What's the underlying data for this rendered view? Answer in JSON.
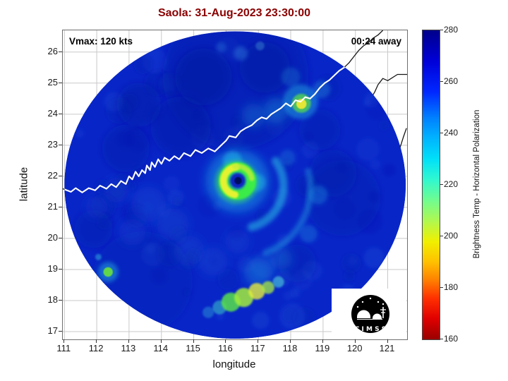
{
  "chart_data": {
    "type": "heatmap",
    "title": "Saola: 31-Aug-2023 23:30:00",
    "title_color": "#8b0000",
    "xlabel": "longitude",
    "ylabel": "latitude",
    "xlim": [
      110.95,
      121.6
    ],
    "ylim": [
      16.75,
      26.7
    ],
    "xticks": [
      111,
      112,
      113,
      114,
      115,
      116,
      117,
      118,
      119,
      120,
      121
    ],
    "yticks": [
      17,
      18,
      19,
      20,
      21,
      22,
      23,
      24,
      25,
      26
    ],
    "grid": true,
    "annotations": {
      "vmax": "Vmax: 120 kts",
      "time_away": "00:24 away"
    },
    "logo_text": "C I M S S",
    "colorbar": {
      "label": "Brightness Temp - Horizontal Polarization",
      "ticks": [
        160,
        180,
        200,
        220,
        240,
        260,
        280
      ],
      "range": [
        160,
        280
      ],
      "stops": [
        {
          "v": 280,
          "c": "#00008b"
        },
        {
          "v": 268,
          "c": "#0000d8"
        },
        {
          "v": 256,
          "c": "#0028ff"
        },
        {
          "v": 246,
          "c": "#0080ff"
        },
        {
          "v": 238,
          "c": "#00b4ff"
        },
        {
          "v": 230,
          "c": "#00e0f8"
        },
        {
          "v": 222,
          "c": "#30f8d0"
        },
        {
          "v": 214,
          "c": "#70fc90"
        },
        {
          "v": 206,
          "c": "#b0f850"
        },
        {
          "v": 198,
          "c": "#f0f000"
        },
        {
          "v": 190,
          "c": "#ffc000"
        },
        {
          "v": 183,
          "c": "#ff8000"
        },
        {
          "v": 176,
          "c": "#ff3000"
        },
        {
          "v": 168,
          "c": "#e00000"
        },
        {
          "v": 160,
          "c": "#990000"
        }
      ]
    },
    "swath": {
      "center_lon": 116.28,
      "center_lat": 21.72,
      "radius_lon": 5.28,
      "radius_lat": 4.95,
      "base_color": "#0826c8"
    },
    "storm": {
      "name": "Saola",
      "eye_lon": 116.35,
      "eye_lat": 21.85,
      "vmax_kts": 120
    },
    "features": [
      {
        "s": "b",
        "x": 116.3,
        "y": 25.2,
        "r": 2.3,
        "c": "#0713a2",
        "o": 0.4,
        "f": 3
      },
      {
        "s": "b",
        "x": 113.4,
        "y": 18.6,
        "r": 1.6,
        "c": "#0815a8",
        "o": 0.3,
        "f": 3
      },
      {
        "s": "b",
        "x": 119.6,
        "y": 21.3,
        "r": 1.2,
        "c": "#0713a2",
        "o": 0.3,
        "f": 3
      },
      {
        "s": "b",
        "x": 114.6,
        "y": 23.6,
        "r": 0.95,
        "c": "#0713a2",
        "o": 0.45,
        "f": 3
      },
      {
        "s": "b",
        "x": 112.9,
        "y": 22.9,
        "r": 0.75,
        "c": "#0713a2",
        "o": 0.4,
        "f": 3
      },
      {
        "s": "b",
        "x": 115.3,
        "y": 25.2,
        "r": 0.9,
        "c": "#06119a",
        "o": 0.45,
        "f": 3
      },
      {
        "s": "b",
        "x": 117.2,
        "y": 25.5,
        "r": 0.8,
        "c": "#06119a",
        "o": 0.4,
        "f": 3
      },
      {
        "s": "b",
        "x": 113.3,
        "y": 24.3,
        "r": 0.7,
        "c": "#06119a",
        "o": 0.4,
        "f": 3
      },
      {
        "s": "b",
        "x": 119.3,
        "y": 22.1,
        "r": 0.75,
        "c": "#0713a2",
        "o": 0.35,
        "f": 3
      },
      {
        "s": "b",
        "x": 118.9,
        "y": 23.5,
        "r": 0.65,
        "c": "#0713a2",
        "o": 0.35,
        "f": 3
      },
      {
        "s": "b",
        "x": 111.9,
        "y": 20.3,
        "r": 0.6,
        "c": "#0713a2",
        "o": 0.35,
        "f": 3
      },
      {
        "s": "b",
        "x": 118.2,
        "y": 19.2,
        "r": 0.6,
        "c": "#0713a2",
        "o": 0.3,
        "f": 3
      },
      {
        "s": "b",
        "x": 113.6,
        "y": 21.1,
        "r": 0.55,
        "c": "#1c4cd4",
        "o": 0.4,
        "f": 3
      },
      {
        "s": "b",
        "x": 114.35,
        "y": 20.45,
        "r": 0.5,
        "c": "#1c49d0",
        "o": 0.38,
        "f": 3
      },
      {
        "s": "b",
        "x": 113.1,
        "y": 20.2,
        "r": 0.42,
        "c": "#1c49d0",
        "o": 0.32,
        "f": 3
      },
      {
        "s": "b",
        "x": 114.85,
        "y": 19.6,
        "r": 0.48,
        "c": "#1e50d4",
        "o": 0.32,
        "f": 3
      },
      {
        "s": "b",
        "x": 112.6,
        "y": 21.55,
        "r": 0.4,
        "c": "#1c49d0",
        "o": 0.3,
        "f": 3
      },
      {
        "s": "b",
        "x": 115.6,
        "y": 19.25,
        "r": 0.45,
        "c": "#1e55d8",
        "o": 0.32,
        "f": 3
      },
      {
        "s": "b",
        "x": 116.35,
        "y": 19.9,
        "r": 0.38,
        "c": "#1e50d4",
        "o": 0.3,
        "f": 3
      },
      {
        "s": "b",
        "x": 112.0,
        "y": 21.0,
        "r": 0.35,
        "c": "#1c49d0",
        "o": 0.28,
        "f": 3
      },
      {
        "s": "b",
        "x": 116.45,
        "y": 25.95,
        "r": 0.22,
        "c": "#2f7fdc",
        "o": 0.4,
        "f": 2
      },
      {
        "s": "b",
        "x": 115.85,
        "y": 26.15,
        "r": 0.16,
        "c": "#2f7fdc",
        "o": 0.35,
        "f": 2
      },
      {
        "s": "b",
        "x": 117.05,
        "y": 26.2,
        "r": 0.14,
        "c": "#4fa8dc",
        "o": 0.35,
        "f": 1
      },
      {
        "s": "b",
        "x": 117.55,
        "y": 24.12,
        "r": 0.4,
        "c": "#1f96dc",
        "o": 0.4,
        "f": 3
      },
      {
        "s": "b",
        "x": 116.85,
        "y": 23.95,
        "r": 0.38,
        "c": "#1f8cd8",
        "o": 0.35,
        "f": 3
      },
      {
        "s": "b",
        "x": 118.95,
        "y": 24.8,
        "r": 0.28,
        "c": "#289ddd",
        "o": 0.35,
        "f": 2
      },
      {
        "s": "b",
        "x": 118.0,
        "y": 25.2,
        "r": 0.3,
        "c": "#1f8cd4",
        "o": 0.3,
        "f": 2
      },
      {
        "s": "b",
        "x": 118.3,
        "y": 24.4,
        "r": 0.55,
        "c": "#22b4e4",
        "o": 0.45,
        "f": 2
      },
      {
        "s": "b",
        "x": 118.33,
        "y": 24.35,
        "r": 0.3,
        "c": "#55dc48",
        "o": 0.75,
        "f": 1
      },
      {
        "s": "b",
        "x": 118.33,
        "y": 24.33,
        "r": 0.16,
        "c": "#eee832",
        "o": 0.95,
        "f": 0
      },
      {
        "s": "b",
        "x": 112.35,
        "y": 18.92,
        "r": 0.32,
        "c": "#22aadd",
        "o": 0.5,
        "f": 2
      },
      {
        "s": "b",
        "x": 112.35,
        "y": 18.92,
        "r": 0.15,
        "c": "#66dc42",
        "o": 0.95,
        "f": 0
      },
      {
        "s": "b",
        "x": 112.05,
        "y": 19.4,
        "r": 0.1,
        "c": "#2fb8e0",
        "o": 0.5,
        "f": 1
      },
      {
        "s": "b",
        "x": 111.85,
        "y": 18.55,
        "r": 0.12,
        "c": "#2292cc",
        "o": 0.4,
        "f": 1
      },
      {
        "s": "a",
        "x": 116.45,
        "y": 21.7,
        "r": 1.35,
        "w": 0.26,
        "a0": -35,
        "a1": 75,
        "c": "#2ad0ea",
        "o": 0.5,
        "f": 2
      },
      {
        "s": "a",
        "x": 116.5,
        "y": 21.6,
        "r": 2.15,
        "w": 0.2,
        "a0": -15,
        "a1": 70,
        "c": "#28b8e8",
        "o": 0.38,
        "f": 2
      },
      {
        "s": "b",
        "x": 118.85,
        "y": 21.4,
        "r": 0.3,
        "c": "#1f86dc",
        "o": 0.42,
        "f": 2
      },
      {
        "s": "b",
        "x": 118.55,
        "y": 20.15,
        "r": 0.28,
        "c": "#1f86dc",
        "o": 0.38,
        "f": 2
      },
      {
        "s": "b",
        "x": 117.9,
        "y": 22.6,
        "r": 0.25,
        "c": "#1f86dc",
        "o": 0.33,
        "f": 2
      },
      {
        "s": "b",
        "x": 117.0,
        "y": 18.9,
        "r": 0.45,
        "c": "#1f96dc",
        "o": 0.4,
        "f": 3
      },
      {
        "s": "b",
        "x": 117.7,
        "y": 19.35,
        "r": 0.35,
        "c": "#1f8cd8",
        "o": 0.33,
        "f": 3
      },
      {
        "s": "b",
        "x": 115.45,
        "y": 17.62,
        "r": 0.18,
        "c": "#2a9fd8",
        "o": 0.45,
        "f": 1
      },
      {
        "s": "b",
        "x": 115.8,
        "y": 17.78,
        "r": 0.22,
        "c": "#3cc8c8",
        "o": 0.55,
        "f": 1
      },
      {
        "s": "b",
        "x": 116.15,
        "y": 17.95,
        "r": 0.3,
        "c": "#57e04b",
        "o": 0.85,
        "f": 1
      },
      {
        "s": "b",
        "x": 116.55,
        "y": 18.1,
        "r": 0.3,
        "c": "#a2ec3c",
        "o": 0.85,
        "f": 1
      },
      {
        "s": "b",
        "x": 116.95,
        "y": 18.3,
        "r": 0.26,
        "c": "#e6ee3c",
        "o": 0.8,
        "f": 1
      },
      {
        "s": "b",
        "x": 117.3,
        "y": 18.42,
        "r": 0.2,
        "c": "#a8ea40",
        "o": 0.75,
        "f": 1
      },
      {
        "s": "b",
        "x": 117.62,
        "y": 18.6,
        "r": 0.18,
        "c": "#50d0d8",
        "o": 0.6,
        "f": 1
      },
      {
        "s": "b",
        "x": 116.35,
        "y": 21.85,
        "r": 1.0,
        "c": "#18c0ee",
        "o": 0.4,
        "f": 3
      },
      {
        "s": "b",
        "x": 116.2,
        "y": 22.5,
        "r": 0.3,
        "c": "#25c8e8",
        "o": 0.45,
        "f": 2
      },
      {
        "s": "b",
        "x": 116.95,
        "y": 21.8,
        "r": 0.28,
        "c": "#25c8e8",
        "o": 0.45,
        "f": 2
      },
      {
        "s": "b",
        "x": 116.33,
        "y": 21.82,
        "r": 0.68,
        "c": "#35e06a",
        "o": 0.55,
        "f": 2
      },
      {
        "s": "a",
        "x": 116.35,
        "y": 21.85,
        "r": 0.44,
        "w": 0.3,
        "a0": 0,
        "a1": 359.9,
        "c": "#3df23d",
        "o": 0.9,
        "f": 1
      },
      {
        "s": "a",
        "x": 116.35,
        "y": 21.85,
        "r": 0.44,
        "w": 0.22,
        "a0": 100,
        "a1": 265,
        "c": "#eef230",
        "o": 0.95,
        "f": 1
      },
      {
        "s": "a",
        "x": 116.35,
        "y": 21.85,
        "r": 0.46,
        "w": 0.16,
        "a0": -100,
        "a1": -10,
        "c": "#c0ee3a",
        "o": 0.8,
        "f": 1
      },
      {
        "s": "b",
        "x": 116.36,
        "y": 21.86,
        "r": 0.235,
        "c": "#0a28c0",
        "o": 1,
        "f": 1
      },
      {
        "s": "b",
        "x": 116.37,
        "y": 21.86,
        "r": 0.115,
        "c": "#02105e",
        "o": 1,
        "f": 0
      }
    ],
    "coastlines": {
      "china": [
        [
          110.95,
          21.6
        ],
        [
          111.2,
          21.5
        ],
        [
          111.35,
          21.62
        ],
        [
          111.55,
          21.48
        ],
        [
          111.75,
          21.62
        ],
        [
          111.95,
          21.55
        ],
        [
          112.1,
          21.7
        ],
        [
          112.3,
          21.6
        ],
        [
          112.45,
          21.75
        ],
        [
          112.6,
          21.65
        ],
        [
          112.75,
          21.85
        ],
        [
          112.9,
          21.75
        ],
        [
          113.0,
          22.0
        ],
        [
          113.1,
          21.9
        ],
        [
          113.2,
          22.15
        ],
        [
          113.3,
          22.0
        ],
        [
          113.4,
          22.2
        ],
        [
          113.5,
          22.1
        ],
        [
          113.55,
          22.35
        ],
        [
          113.65,
          22.2
        ],
        [
          113.7,
          22.45
        ],
        [
          113.8,
          22.3
        ],
        [
          113.9,
          22.55
        ],
        [
          114.0,
          22.4
        ],
        [
          114.1,
          22.6
        ],
        [
          114.25,
          22.5
        ],
        [
          114.4,
          22.65
        ],
        [
          114.55,
          22.55
        ],
        [
          114.7,
          22.75
        ],
        [
          114.9,
          22.65
        ],
        [
          115.05,
          22.85
        ],
        [
          115.25,
          22.75
        ],
        [
          115.45,
          22.9
        ],
        [
          115.65,
          22.8
        ],
        [
          115.85,
          23.0
        ],
        [
          116.0,
          23.15
        ],
        [
          116.1,
          23.3
        ],
        [
          116.3,
          23.25
        ],
        [
          116.45,
          23.45
        ],
        [
          116.6,
          23.55
        ],
        [
          116.8,
          23.65
        ],
        [
          116.95,
          23.8
        ],
        [
          117.1,
          23.9
        ],
        [
          117.25,
          23.85
        ],
        [
          117.4,
          24.0
        ],
        [
          117.55,
          24.1
        ],
        [
          117.7,
          24.2
        ],
        [
          117.85,
          24.35
        ],
        [
          118.0,
          24.25
        ],
        [
          118.15,
          24.45
        ],
        [
          118.3,
          24.4
        ],
        [
          118.45,
          24.55
        ],
        [
          118.6,
          24.5
        ],
        [
          118.75,
          24.65
        ],
        [
          118.9,
          24.85
        ],
        [
          119.05,
          25.0
        ],
        [
          119.2,
          25.1
        ],
        [
          119.35,
          25.25
        ],
        [
          119.5,
          25.4
        ],
        [
          119.65,
          25.5
        ],
        [
          119.8,
          25.65
        ],
        [
          119.95,
          25.85
        ],
        [
          120.1,
          26.05
        ],
        [
          120.25,
          26.2
        ],
        [
          120.4,
          26.3
        ],
        [
          120.55,
          26.45
        ],
        [
          120.7,
          26.55
        ],
        [
          120.85,
          26.7
        ]
      ],
      "taiwan": [
        [
          121.6,
          25.28
        ],
        [
          121.3,
          25.28
        ],
        [
          121.0,
          25.08
        ],
        [
          120.85,
          25.15
        ],
        [
          120.7,
          24.95
        ],
        [
          120.6,
          24.72
        ],
        [
          120.45,
          24.45
        ],
        [
          120.28,
          24.12
        ],
        [
          120.12,
          23.78
        ],
        [
          120.05,
          23.4
        ],
        [
          120.1,
          23.05
        ],
        [
          120.22,
          22.82
        ],
        [
          120.42,
          22.55
        ],
        [
          120.65,
          22.25
        ],
        [
          120.82,
          21.98
        ],
        [
          120.95,
          21.92
        ],
        [
          121.08,
          22.18
        ],
        [
          121.22,
          22.52
        ],
        [
          121.38,
          22.92
        ],
        [
          121.48,
          23.25
        ],
        [
          121.58,
          23.55
        ]
      ]
    }
  }
}
